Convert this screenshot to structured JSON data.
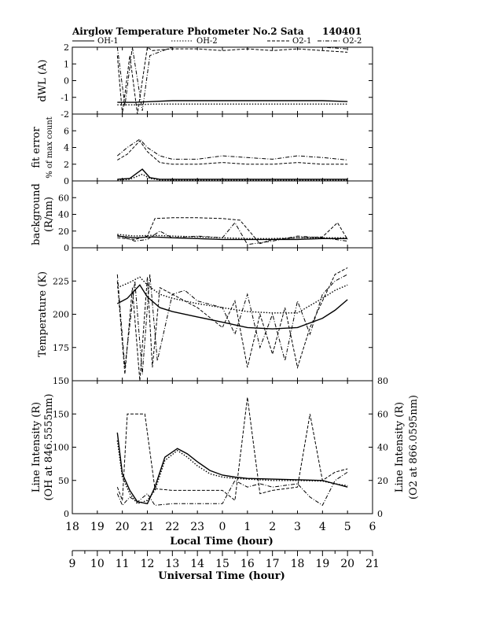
{
  "title": "Airglow Temperature Photometer No.2  Sata",
  "date_code": "140401",
  "legend": [
    {
      "name": "OH-1",
      "dash": "solid",
      "width": 1
    },
    {
      "name": "OH-2",
      "dash": "dotted",
      "width": 1
    },
    {
      "name": "O2-1",
      "dash": "dashed",
      "width": 1
    },
    {
      "name": "O2-2",
      "dash": "dashdot",
      "width": 1
    }
  ],
  "colors": {
    "line": "#000000",
    "background": "#ffffff"
  },
  "local_axis": {
    "label": "Local Time (hour)",
    "ticks": [
      "18",
      "19",
      "20",
      "21",
      "22",
      "23",
      "0",
      "1",
      "2",
      "3",
      "4",
      "5",
      "6"
    ]
  },
  "utc_axis": {
    "label": "Universal Time (hour)",
    "ticks": [
      "9",
      "10",
      "11",
      "12",
      "13",
      "14",
      "15",
      "16",
      "17",
      "18",
      "19",
      "20",
      "21"
    ]
  },
  "panels": [
    {
      "id": "dwl",
      "ylabel": "dWL (A)",
      "ylabel_sub": "",
      "ylim": [
        -2,
        2
      ],
      "yticks": [
        -2,
        -1,
        0,
        1,
        2
      ]
    },
    {
      "id": "fiterr",
      "ylabel": "fit error",
      "ylabel_sub": "% of max count",
      "ylim": [
        0,
        8
      ],
      "yticks": [
        0,
        2,
        4,
        6
      ]
    },
    {
      "id": "bg",
      "ylabel": "background",
      "ylabel_sub": "(R/nm)",
      "ylim": [
        0,
        80
      ],
      "yticks": [
        0,
        20,
        40,
        60
      ]
    },
    {
      "id": "temp",
      "ylabel": "Temperature (K)",
      "ylabel_sub": "",
      "ylim": [
        150,
        250
      ],
      "yticks": [
        175,
        200,
        225
      ]
    },
    {
      "id": "int",
      "ylabel": "Line Intensity (R)",
      "ylabel_sub": "(OH at 846.5555nm)",
      "ylim": [
        0,
        200
      ],
      "yticks": [
        0,
        50,
        100,
        150
      ],
      "ylabel_right": "Line Intensity (R)",
      "ylabel_right_sub": "(O2 at 866.0595nm)",
      "yticks_right": [
        0,
        20,
        40,
        60,
        80
      ],
      "ylim_right": [
        0,
        80
      ]
    }
  ],
  "chart_data": {
    "type": "line",
    "title": "Airglow Temperature Photometer No.2  Sata",
    "xlabel": "Local Time (hour)",
    "x_range_local": [
      18,
      30
    ],
    "x_secondary_label": "Universal Time (hour)",
    "note": "",
    "series": [
      {
        "panel": "dwl",
        "name": "OH-1",
        "x": [
          19.8,
          20.5,
          21.2,
          22,
          23,
          24,
          25,
          26,
          27,
          28,
          29
        ],
        "y": [
          -1.3,
          -1.3,
          -1.25,
          -1.2,
          -1.2,
          -1.2,
          -1.2,
          -1.2,
          -1.2,
          -1.2,
          -1.25
        ]
      },
      {
        "panel": "dwl",
        "name": "OH-2",
        "x": [
          19.8,
          20.5,
          21.2,
          22,
          23,
          24,
          25,
          26,
          27,
          28,
          29
        ],
        "y": [
          -1.45,
          -1.45,
          -1.4,
          -1.4,
          -1.4,
          -1.4,
          -1.4,
          -1.4,
          -1.4,
          -1.4,
          -1.4
        ]
      },
      {
        "panel": "dwl",
        "name": "O2-1",
        "x": [
          19.8,
          20.0,
          20.3,
          20.6,
          21.0,
          21.2,
          22,
          23,
          24,
          25,
          26,
          27,
          28,
          29
        ],
        "y": [
          1.5,
          -2,
          1.5,
          -2,
          2,
          1.8,
          1.9,
          1.9,
          1.8,
          1.9,
          1.8,
          1.9,
          1.8,
          1.7
        ]
      },
      {
        "panel": "dwl",
        "name": "O2-2",
        "x": [
          19.8,
          20.1,
          20.4,
          20.8,
          21.1,
          22,
          23,
          24,
          25,
          26,
          27,
          28,
          29
        ],
        "y": [
          2,
          -1.5,
          2,
          -1.8,
          1.5,
          2,
          2,
          2,
          2,
          2,
          2,
          2,
          1.9
        ]
      },
      {
        "panel": "fiterr",
        "name": "OH-1",
        "x": [
          19.8,
          20.3,
          20.8,
          21.1,
          21.5,
          22,
          23,
          24,
          25,
          26,
          27,
          28,
          29
        ],
        "y": [
          0.2,
          0.3,
          1.4,
          0.4,
          0.2,
          0.2,
          0.2,
          0.2,
          0.2,
          0.2,
          0.2,
          0.2,
          0.2
        ]
      },
      {
        "panel": "fiterr",
        "name": "OH-2",
        "x": [
          19.8,
          20.3,
          20.8,
          21.1,
          21.5,
          22,
          23,
          24,
          25,
          26,
          27,
          28,
          29
        ],
        "y": [
          0.1,
          0.2,
          0.8,
          0.3,
          0.1,
          0.1,
          0.1,
          0.1,
          0.1,
          0.1,
          0.1,
          0.1,
          0.1
        ]
      },
      {
        "panel": "fiterr",
        "name": "O2-1",
        "x": [
          19.8,
          20.2,
          20.7,
          21.0,
          21.5,
          22,
          23,
          24,
          25,
          26,
          27,
          28,
          29
        ],
        "y": [
          2.5,
          3.2,
          4.8,
          3.5,
          2.2,
          2.0,
          2.0,
          2.2,
          2.0,
          2.0,
          2.2,
          2.0,
          2.0
        ]
      },
      {
        "panel": "fiterr",
        "name": "O2-2",
        "x": [
          19.8,
          20.2,
          20.7,
          21.0,
          21.5,
          22,
          23,
          24,
          25,
          26,
          27,
          28,
          29
        ],
        "y": [
          3.0,
          4.0,
          5.0,
          4.0,
          3.0,
          2.6,
          2.6,
          3.0,
          2.8,
          2.6,
          3.0,
          2.8,
          2.5
        ]
      },
      {
        "panel": "bg",
        "name": "OH-1",
        "x": [
          19.8,
          20.5,
          21.2,
          22,
          23,
          24,
          25,
          26,
          27,
          28,
          29
        ],
        "y": [
          14,
          12,
          13,
          12,
          11,
          10,
          10,
          10,
          10,
          11,
          11
        ]
      },
      {
        "panel": "bg",
        "name": "OH-2",
        "x": [
          19.8,
          20.5,
          21.2,
          22,
          23,
          24,
          25,
          26,
          27,
          28,
          29
        ],
        "y": [
          16,
          14,
          15,
          14,
          13,
          12,
          11,
          11,
          12,
          12,
          12
        ]
      },
      {
        "panel": "bg",
        "name": "O2-1",
        "x": [
          19.8,
          20.5,
          21.0,
          21.3,
          22,
          23,
          24,
          24.7,
          25.5,
          26,
          27,
          28,
          28.6,
          29
        ],
        "y": [
          12,
          10,
          14,
          35,
          36,
          36,
          35,
          33,
          5,
          10,
          12,
          13,
          30,
          10
        ]
      },
      {
        "panel": "bg",
        "name": "O2-2",
        "x": [
          19.8,
          20.5,
          21.0,
          21.5,
          22,
          23,
          24,
          24.5,
          25,
          26,
          27,
          28,
          29
        ],
        "y": [
          15,
          8,
          10,
          20,
          12,
          14,
          12,
          30,
          4,
          8,
          14,
          12,
          8
        ]
      },
      {
        "panel": "temp",
        "name": "OH-1",
        "x": [
          19.8,
          20.2,
          20.7,
          21.0,
          21.5,
          22,
          23,
          24,
          25,
          26,
          27,
          28,
          28.5,
          29
        ],
        "y": [
          208,
          212,
          222,
          213,
          205,
          202,
          198,
          194,
          190,
          189,
          190,
          197,
          203,
          211
        ]
      },
      {
        "panel": "temp",
        "name": "OH-2",
        "x": [
          19.8,
          20.3,
          20.7,
          21.0,
          21.5,
          22,
          23,
          24,
          25,
          26,
          27,
          28,
          28.5,
          29
        ],
        "y": [
          220,
          224,
          228,
          222,
          215,
          212,
          208,
          205,
          202,
          201,
          201,
          212,
          218,
          222
        ]
      },
      {
        "panel": "temp",
        "name": "O2-1",
        "x": [
          19.8,
          20.1,
          20.4,
          20.7,
          21.0,
          21.2,
          21.5,
          22,
          23,
          24,
          24.5,
          25,
          25.5,
          26,
          26.5,
          27,
          27.5,
          28,
          28.5,
          29
        ],
        "y": [
          225,
          155,
          220,
          150,
          228,
          160,
          220,
          215,
          205,
          190,
          210,
          160,
          200,
          170,
          205,
          160,
          190,
          210,
          230,
          235
        ]
      },
      {
        "panel": "temp",
        "name": "O2-2",
        "x": [
          19.8,
          20.1,
          20.5,
          20.8,
          21.1,
          21.4,
          22,
          22.5,
          23,
          24,
          24.5,
          25,
          25.5,
          26,
          26.5,
          27,
          27.5,
          28,
          28.5,
          29
        ],
        "y": [
          230,
          160,
          225,
          155,
          230,
          165,
          215,
          218,
          210,
          205,
          185,
          215,
          175,
          200,
          165,
          210,
          185,
          215,
          225,
          230
        ]
      },
      {
        "panel": "int",
        "name": "OH-1",
        "x": [
          19.8,
          20.0,
          20.3,
          20.6,
          21.0,
          21.3,
          21.7,
          22.2,
          22.6,
          23.0,
          23.5,
          24,
          24.5,
          25,
          26,
          27,
          28,
          28.5,
          29
        ],
        "y": [
          122,
          60,
          35,
          18,
          15,
          40,
          85,
          98,
          90,
          78,
          65,
          58,
          55,
          53,
          52,
          51,
          50,
          45,
          40
        ]
      },
      {
        "panel": "int",
        "name": "OH-2",
        "x": [
          19.8,
          20.0,
          20.3,
          20.6,
          21.0,
          21.3,
          21.7,
          22.2,
          22.6,
          23.0,
          23.5,
          24,
          24.5,
          25,
          26,
          27,
          28,
          28.5,
          29
        ],
        "y": [
          110,
          55,
          30,
          15,
          20,
          35,
          80,
          95,
          85,
          72,
          60,
          55,
          53,
          52,
          50,
          50,
          49,
          45,
          42
        ]
      },
      {
        "panel": "int",
        "name": "O2-1",
        "x": [
          19.8,
          20.0,
          20.2,
          20.6,
          20.9,
          21.3,
          22,
          23,
          24,
          24.5,
          25,
          25.5,
          26,
          27,
          27.5,
          28,
          28.5,
          29
        ],
        "y_right": [
          16,
          8,
          60,
          60,
          60,
          15,
          14,
          14,
          14,
          8,
          70,
          12,
          14,
          16,
          60,
          20,
          25,
          27
        ]
      },
      {
        "panel": "int",
        "name": "O2-2",
        "x": [
          19.8,
          20.0,
          20.3,
          20.6,
          21.0,
          21.3,
          22,
          23,
          24,
          24.5,
          25,
          25.5,
          26,
          27,
          27.5,
          28,
          28.5,
          29
        ],
        "y_right": [
          12,
          5,
          10,
          7,
          12,
          5,
          6,
          6,
          6,
          20,
          16,
          18,
          16,
          18,
          10,
          5,
          20,
          25
        ]
      }
    ]
  }
}
